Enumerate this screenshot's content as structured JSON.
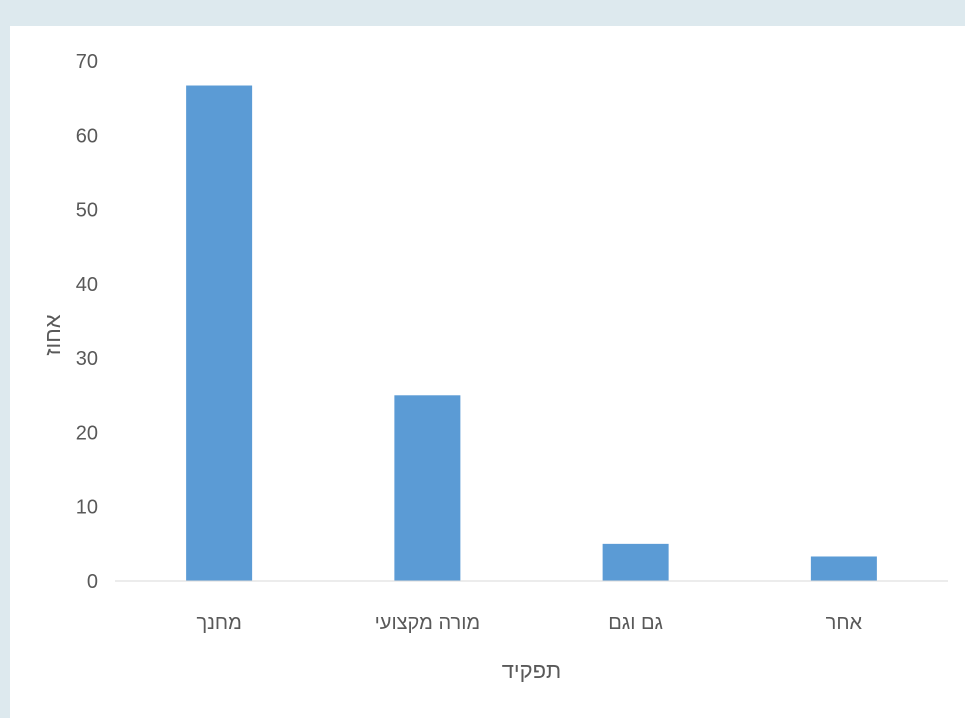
{
  "chart_data": {
    "type": "bar",
    "title": "",
    "xlabel": "תפקיד",
    "ylabel": "אחוז",
    "categories": [
      "מחנך",
      "מורה מקצועי",
      "גם וגם",
      "אחר"
    ],
    "values": [
      66.7,
      25.0,
      5.0,
      3.3
    ],
    "ylim": [
      0,
      70
    ],
    "yticks": [
      0,
      10,
      20,
      30,
      40,
      50,
      60,
      70
    ],
    "bar_color": "#5b9bd5",
    "grid": false,
    "legend": "none"
  }
}
